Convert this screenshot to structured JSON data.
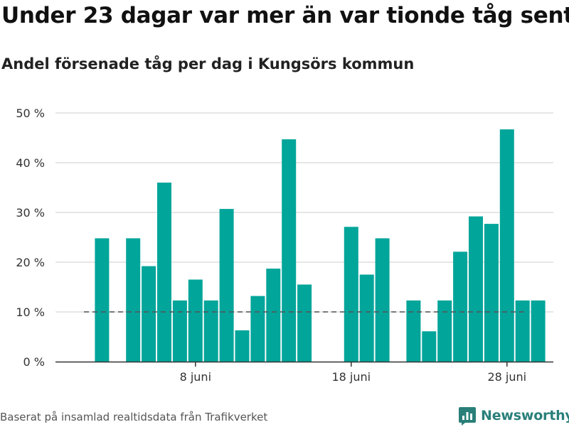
{
  "chart_data": {
    "type": "bar",
    "title": "Under 23 dagar var mer än var tionde tåg sent",
    "subtitle": "Andel försenade tåg per dag i Kungsörs kommun",
    "x_start_label": "1 juni",
    "x_end_label": "30 juni",
    "categories": [
      "1 juni",
      "2 juni",
      "3 juni",
      "4 juni",
      "5 juni",
      "6 juni",
      "7 juni",
      "8 juni",
      "9 juni",
      "10 juni",
      "11 juni",
      "12 juni",
      "13 juni",
      "14 juni",
      "15 juni",
      "16 juni",
      "17 juni",
      "18 juni",
      "19 juni",
      "20 juni",
      "21 juni",
      "22 juni",
      "23 juni",
      "24 juni",
      "25 juni",
      "26 juni",
      "27 juni",
      "28 juni",
      "29 juni",
      "30 juni"
    ],
    "values": [
      null,
      24.8,
      null,
      24.8,
      19.2,
      36.0,
      12.3,
      16.5,
      12.3,
      30.7,
      6.3,
      13.2,
      18.7,
      44.7,
      15.5,
      null,
      null,
      27.1,
      17.5,
      24.8,
      null,
      12.3,
      6.1,
      12.3,
      22.1,
      29.2,
      27.7,
      46.7,
      12.3,
      12.3
    ],
    "ylim": [
      0,
      50
    ],
    "yticks": [
      0,
      10,
      20,
      30,
      40,
      50
    ],
    "ytick_labels": [
      "0 %",
      "10 %",
      "20 %",
      "30 %",
      "40 %",
      "50 %"
    ],
    "xticks": [
      "8 juni",
      "18 juni",
      "28 juni"
    ],
    "reference_line": {
      "value": 10,
      "style": "dashed"
    },
    "grid": true,
    "legend": "none",
    "colors": {
      "bar": "#02a59a",
      "grid": "#dddddd",
      "axis": "#333333",
      "reference": "#555555"
    }
  },
  "footer": {
    "source": "Baserat på insamlad realtidsdata från Trafikverket"
  },
  "brand": {
    "name": "Newsworthy",
    "icon": "newsworthy-logo-icon",
    "color": "#2a7f7a"
  }
}
